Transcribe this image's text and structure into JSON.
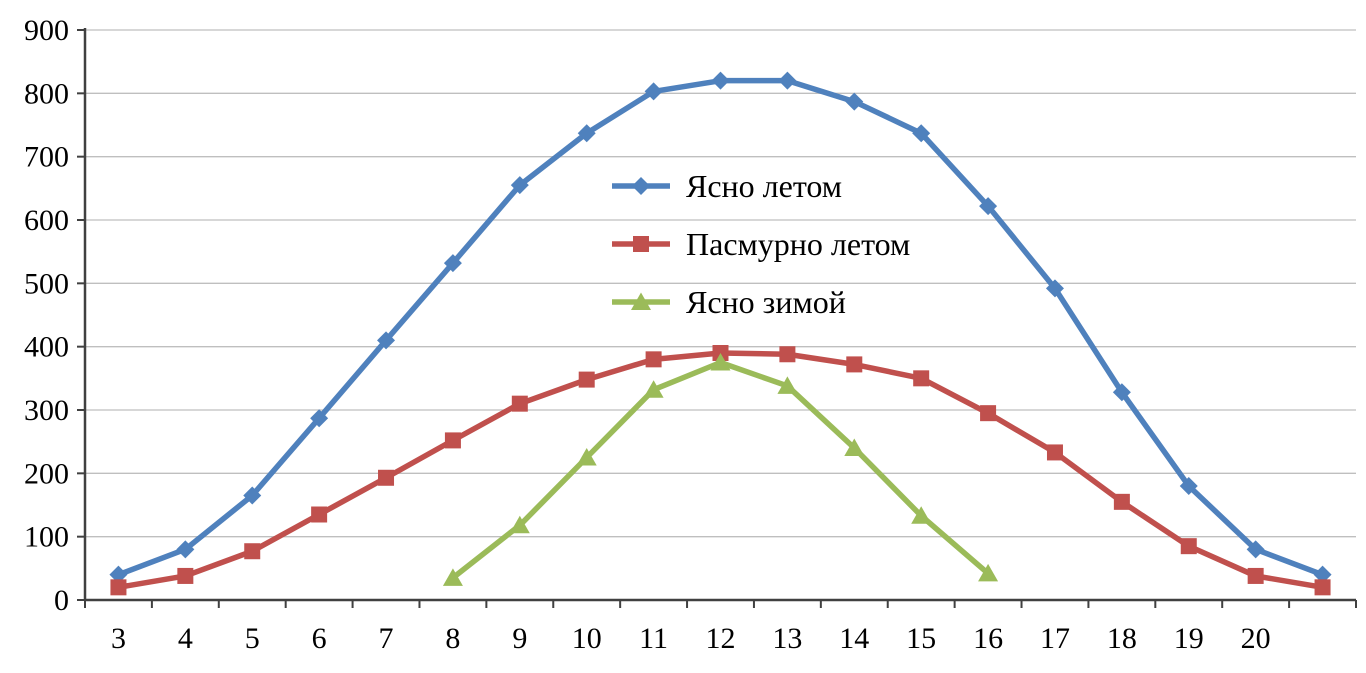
{
  "chart_data": {
    "type": "line",
    "x": [
      3,
      4,
      5,
      6,
      7,
      8,
      9,
      10,
      11,
      12,
      13,
      14,
      15,
      16,
      17,
      18,
      19,
      20,
      21
    ],
    "x_tick_labels": [
      "3",
      "4",
      "5",
      "6",
      "7",
      "8",
      "9",
      "10",
      "11",
      "12",
      "13",
      "14",
      "15",
      "16",
      "17",
      "18",
      "19",
      "20",
      ""
    ],
    "y_ticks": [
      0,
      100,
      200,
      300,
      400,
      500,
      600,
      700,
      800,
      900
    ],
    "ylim": [
      0,
      900
    ],
    "grid": true,
    "legend_position": "inside-upper-center",
    "series": [
      {
        "name": "Ясно летом",
        "color": "#4F81BD",
        "marker": "diamond",
        "values": [
          40,
          80,
          165,
          287,
          410,
          532,
          655,
          737,
          803,
          820,
          820,
          787,
          737,
          622,
          492,
          328,
          180,
          80,
          40
        ]
      },
      {
        "name": "Пасмурно летом",
        "color": "#C0504D",
        "marker": "square",
        "values": [
          20,
          38,
          77,
          135,
          193,
          252,
          310,
          348,
          380,
          390,
          388,
          372,
          350,
          295,
          233,
          155,
          85,
          38,
          20
        ]
      },
      {
        "name": "Ясно зимой",
        "color": "#9BBB59",
        "marker": "triangle",
        "values": [
          null,
          null,
          null,
          null,
          null,
          35,
          118,
          225,
          332,
          375,
          338,
          240,
          133,
          42,
          null,
          null,
          null,
          null,
          null
        ]
      }
    ],
    "title": "",
    "xlabel": "",
    "ylabel": ""
  },
  "colors": {
    "axis": "#404040",
    "gridline": "#BFBFBF",
    "background": "#FFFFFF",
    "text": "#000000"
  }
}
